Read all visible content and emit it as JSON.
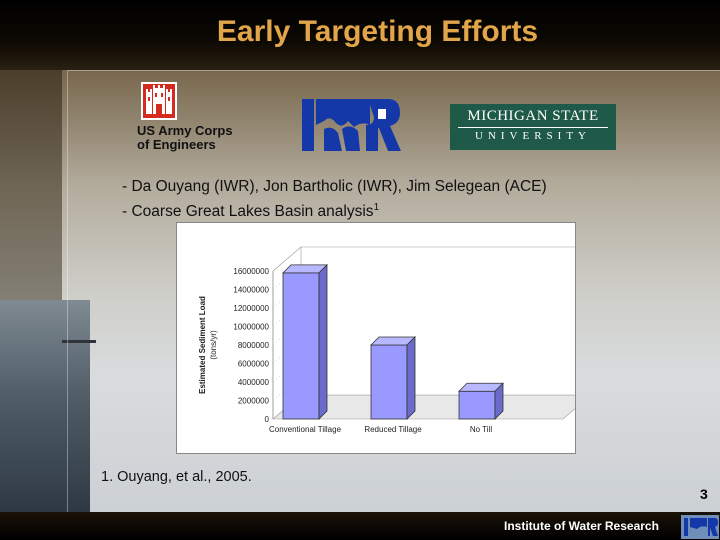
{
  "slide": {
    "title": "Early Targeting Efforts",
    "logos": {
      "usace_line1": "US Army Corps",
      "usace_line2": "of Engineers",
      "msu_line1": "MICHIGAN STATE",
      "msu_line2": "UNIVERSITY"
    },
    "bullets": {
      "b1": "- Da Ouyang (IWR), Jon Bartholic (IWR), Jim Selegean (ACE)",
      "b2": "-  Coarse Great Lakes Basin analysis",
      "b2_sup": "1"
    },
    "footnote": "1.  Ouyang,  et al., 2005.",
    "page_number": "3",
    "footer_text": "Institute of Water Research"
  },
  "chart_data": {
    "type": "bar",
    "categories": [
      "Conventional Tillage",
      "Reduced Tillage",
      "No Till"
    ],
    "values": [
      15800000,
      8000000,
      3000000
    ],
    "ylabel_line1": "Estimated Sediment Load",
    "ylabel_line2": "(tons/yr)",
    "ylim": [
      0,
      16000000
    ],
    "yticks": [
      "0",
      "2000000",
      "4000000",
      "6000000",
      "8000000",
      "10000000",
      "12000000",
      "14000000",
      "16000000"
    ],
    "bar_color": "#9999ff",
    "grid": false
  }
}
